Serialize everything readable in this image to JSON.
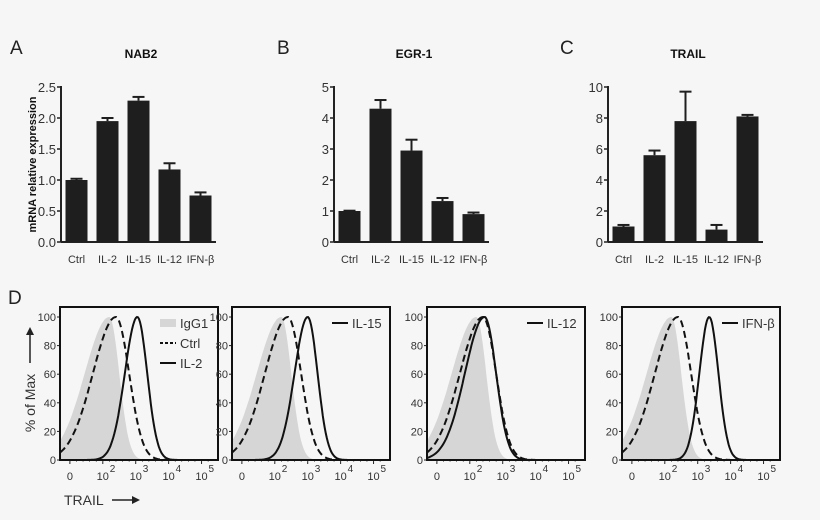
{
  "chart_data": [
    {
      "type": "bar",
      "panel": "A",
      "title": "NAB2",
      "ylabel": "mRNA relative expression",
      "ylim": [
        0,
        2.5
      ],
      "yticks": [
        "0.0",
        "0.5",
        "1.0",
        "1.5",
        "2.0",
        "2.5"
      ],
      "categories": [
        "Ctrl",
        "IL-2",
        "IL-15",
        "IL-12",
        "IFN-β"
      ],
      "values": [
        1.0,
        1.95,
        2.28,
        1.17,
        0.75
      ],
      "errors": [
        0.02,
        0.05,
        0.06,
        0.1,
        0.05
      ]
    },
    {
      "type": "bar",
      "panel": "B",
      "title": "EGR-1",
      "ylabel": "",
      "ylim": [
        0,
        5
      ],
      "yticks": [
        "0",
        "1",
        "2",
        "3",
        "4",
        "5"
      ],
      "categories": [
        "Ctrl",
        "IL-2",
        "IL-15",
        "IL-12",
        "IFN-β"
      ],
      "values": [
        1.0,
        4.3,
        2.95,
        1.32,
        0.9
      ],
      "errors": [
        0.01,
        0.28,
        0.35,
        0.1,
        0.05
      ]
    },
    {
      "type": "bar",
      "panel": "C",
      "title": "TRAIL",
      "ylabel": "",
      "ylim": [
        0,
        10
      ],
      "yticks": [
        "0",
        "2",
        "4",
        "6",
        "8",
        "10"
      ],
      "categories": [
        "Ctrl",
        "IL-2",
        "IL-15",
        "IL-12",
        "IFN-β"
      ],
      "values": [
        1.0,
        5.6,
        7.8,
        0.8,
        8.1
      ],
      "errors": [
        0.1,
        0.3,
        1.9,
        0.3,
        0.1
      ]
    },
    {
      "type": "line",
      "panel": "D",
      "ylabel": "% of Max",
      "xlabel": "TRAIL",
      "ylim": [
        0,
        100
      ],
      "yticks": [
        "0",
        "20",
        "40",
        "60",
        "80",
        "100"
      ],
      "xticks": [
        {
          "base": "0",
          "exp": ""
        },
        {
          "base": "10",
          "exp": "2"
        },
        {
          "base": "10",
          "exp": "3"
        },
        {
          "base": "10",
          "exp": "4"
        },
        {
          "base": "10",
          "exp": "5"
        }
      ],
      "histograms": [
        {
          "legend": [
            {
              "label": "IgG1",
              "style": "filled"
            },
            {
              "label": "Ctrl",
              "style": "dashed"
            },
            {
              "label": "IL-2",
              "style": "solid"
            }
          ],
          "series": [
            {
              "name": "IgG1",
              "peak": 2.2,
              "left_width": 0.75,
              "right_width": 0.3
            },
            {
              "name": "Ctrl",
              "peak": 2.4,
              "left_width": 0.7,
              "right_width": 0.4
            },
            {
              "name": "IL-2",
              "peak": 3.05,
              "left_width": 0.38,
              "right_width": 0.3
            }
          ]
        },
        {
          "legend": [
            {
              "label": "IL-15",
              "style": "solid"
            }
          ],
          "series": [
            {
              "name": "IgG1",
              "peak": 2.2,
              "left_width": 0.75,
              "right_width": 0.3
            },
            {
              "name": "Ctrl",
              "peak": 2.4,
              "left_width": 0.7,
              "right_width": 0.4
            },
            {
              "name": "IL-15",
              "peak": 3.0,
              "left_width": 0.4,
              "right_width": 0.3
            }
          ]
        },
        {
          "legend": [
            {
              "label": "IL-12",
              "style": "solid"
            }
          ],
          "series": [
            {
              "name": "IgG1",
              "peak": 2.2,
              "left_width": 0.75,
              "right_width": 0.3
            },
            {
              "name": "Ctrl",
              "peak": 2.4,
              "left_width": 0.7,
              "right_width": 0.4
            },
            {
              "name": "IL-12",
              "peak": 2.45,
              "left_width": 0.6,
              "right_width": 0.35
            }
          ]
        },
        {
          "legend": [
            {
              "label": "IFN-β",
              "style": "solid"
            }
          ],
          "series": [
            {
              "name": "IgG1",
              "peak": 2.2,
              "left_width": 0.75,
              "right_width": 0.3
            },
            {
              "name": "Ctrl",
              "peak": 2.4,
              "left_width": 0.7,
              "right_width": 0.4
            },
            {
              "name": "IFN-β",
              "peak": 3.35,
              "left_width": 0.3,
              "right_width": 0.28
            }
          ]
        }
      ]
    }
  ],
  "colors": {
    "bar": "#1e1e1e",
    "fill": "#d6d6d6",
    "line": "#111111"
  }
}
